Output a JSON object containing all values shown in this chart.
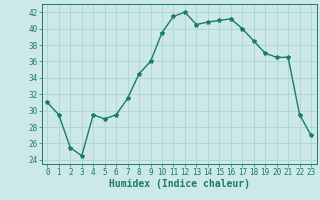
{
  "x": [
    0,
    1,
    2,
    3,
    4,
    5,
    6,
    7,
    8,
    9,
    10,
    11,
    12,
    13,
    14,
    15,
    16,
    17,
    18,
    19,
    20,
    21,
    22,
    23
  ],
  "y": [
    31,
    29.5,
    25.5,
    24.5,
    29.5,
    29,
    29.5,
    31.5,
    34.5,
    36,
    39.5,
    41.5,
    42,
    40.5,
    40.8,
    41,
    41.2,
    40,
    38.5,
    37,
    36.5,
    36.5,
    29.5,
    27
  ],
  "line_color": "#1a7a6e",
  "marker": "*",
  "marker_size": 3,
  "bg_color": "#cce8e8",
  "grid_color": "#aacfcf",
  "xlabel": "Humidex (Indice chaleur)",
  "ylim": [
    23.5,
    43
  ],
  "xlim": [
    -0.5,
    23.5
  ],
  "yticks": [
    24,
    26,
    28,
    30,
    32,
    34,
    36,
    38,
    40,
    42
  ],
  "xticks": [
    0,
    1,
    2,
    3,
    4,
    5,
    6,
    7,
    8,
    9,
    10,
    11,
    12,
    13,
    14,
    15,
    16,
    17,
    18,
    19,
    20,
    21,
    22,
    23
  ],
  "tick_label_fontsize": 5.5,
  "xlabel_fontsize": 7,
  "line_width": 1.0
}
